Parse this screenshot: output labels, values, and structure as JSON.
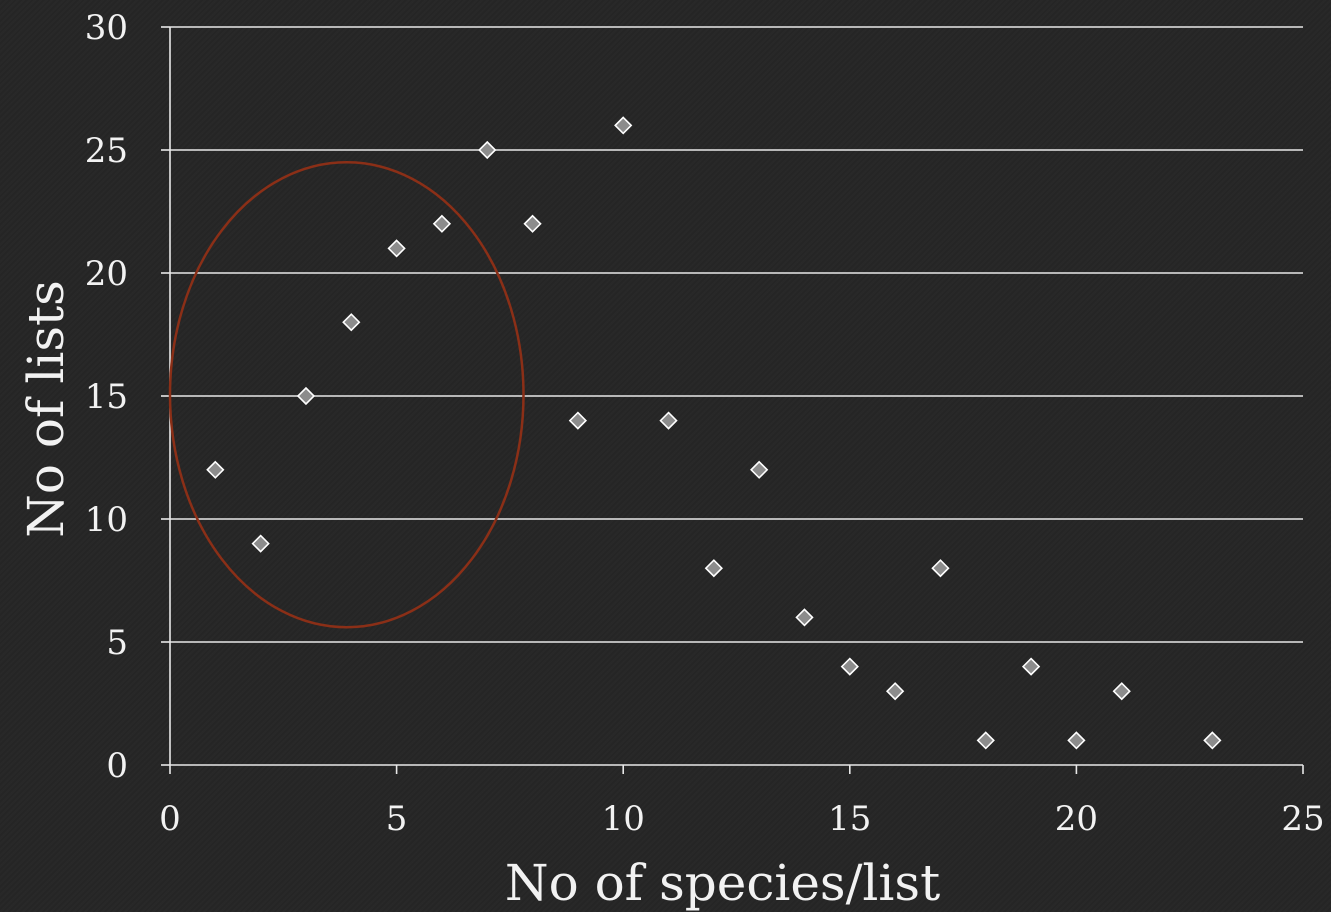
{
  "chart_data": {
    "type": "scatter",
    "xlabel": "No of species/list",
    "ylabel": "No of lists",
    "xlim": [
      0,
      25
    ],
    "ylim": [
      0,
      30
    ],
    "xticks": [
      0,
      5,
      10,
      15,
      20,
      25
    ],
    "yticks": [
      0,
      5,
      10,
      15,
      20,
      25,
      30
    ],
    "xtick_labels": [
      "0",
      "5",
      "10",
      "15",
      "20",
      "25"
    ],
    "ytick_labels": [
      "0",
      "5",
      "10",
      "15",
      "20",
      "25",
      "30"
    ],
    "grid": "horizontal",
    "marker": "diamond",
    "series": [
      {
        "points": [
          [
            1,
            12
          ],
          [
            2,
            9
          ],
          [
            3,
            15
          ],
          [
            4,
            18
          ],
          [
            5,
            21
          ],
          [
            6,
            22
          ],
          [
            7,
            25
          ],
          [
            8,
            22
          ],
          [
            9,
            14
          ],
          [
            10,
            26
          ],
          [
            11,
            14
          ],
          [
            12,
            8
          ],
          [
            13,
            12
          ],
          [
            14,
            6
          ],
          [
            15,
            4
          ],
          [
            16,
            3
          ],
          [
            17,
            8
          ],
          [
            18,
            1
          ],
          [
            19,
            4
          ],
          [
            20,
            1
          ],
          [
            21,
            3
          ],
          [
            23,
            1
          ]
        ]
      }
    ],
    "annotations": [
      {
        "type": "ellipse",
        "center": [
          3.9,
          15.05
        ],
        "radius": [
          3.9,
          9.45
        ]
      }
    ],
    "colors": {
      "background": "#262626",
      "axis": "#e8e8e8",
      "text": "#f2f2f2",
      "marker_fill": "#8c8c8c",
      "marker_stroke": "#ffffff",
      "annotation": "#8b2f17"
    }
  }
}
